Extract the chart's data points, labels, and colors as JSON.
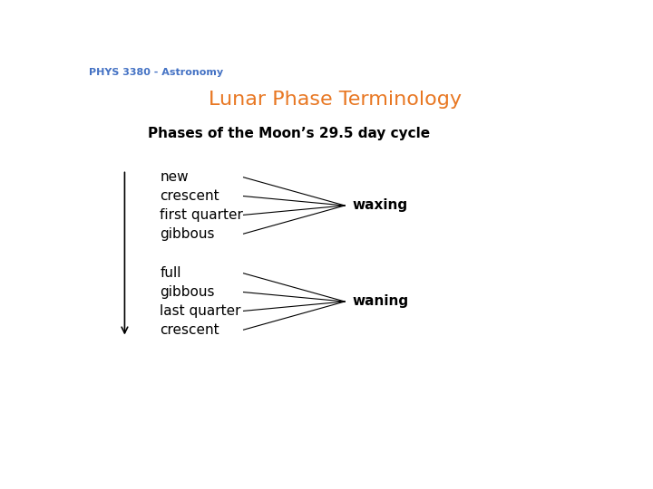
{
  "title": "Lunar Phase Terminology",
  "title_color": "#E87722",
  "title_fontsize": 16,
  "header_text": "PHYS 3380 - Astronomy",
  "header_color": "#4472C4",
  "header_fontsize": 8,
  "subtitle": "Phases of the Moon’s 29.5 day cycle",
  "subtitle_fontsize": 11,
  "bg_color": "#FFFFFF",
  "waxing_phases": [
    "new",
    "crescent",
    "first quarter",
    "gibbous"
  ],
  "waning_phases": [
    "full",
    "gibbous",
    "last quarter",
    "crescent"
  ],
  "waxing_label": "waxing",
  "waning_label": "waning",
  "label_fontsize": 11,
  "phase_fontsize": 11
}
